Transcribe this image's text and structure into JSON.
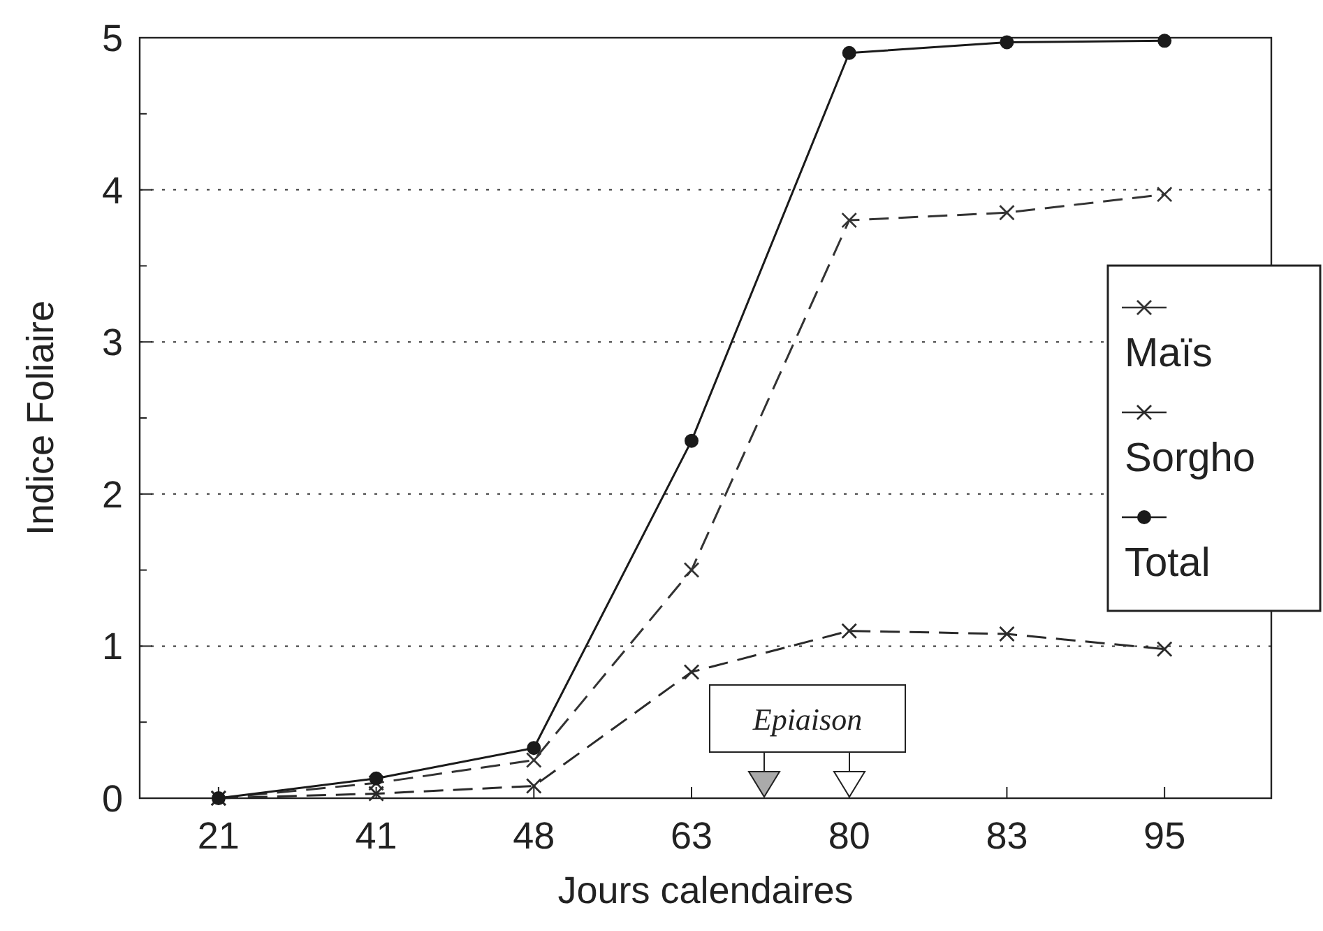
{
  "chart_data": {
    "type": "line",
    "xlabel": "Jours calendaires",
    "ylabel": "Indice Foliaire",
    "categories": [
      "21",
      "41",
      "48",
      "63",
      "80",
      "83",
      "95"
    ],
    "series": [
      {
        "name": "Maïs",
        "color": "#333333",
        "values": [
          0,
          0.1,
          0.25,
          1.5,
          3.8,
          3.85,
          3.97
        ],
        "marker": "cross",
        "line_style": "dashed"
      },
      {
        "name": "Sorgho",
        "color": "#2a2a2a",
        "values": [
          0,
          0.03,
          0.08,
          0.83,
          1.1,
          1.08,
          0.98
        ],
        "marker": "cross",
        "line_style": "dashed"
      },
      {
        "name": "Total",
        "color": "#1a1a1a",
        "values": [
          0,
          0.13,
          0.33,
          2.35,
          4.9,
          4.97,
          4.98
        ],
        "marker": "circle",
        "line_style": "solid"
      }
    ],
    "ylim": [
      0,
      5
    ],
    "yticks": [
      0,
      {
        "value": 0.5,
        "label": null
      },
      1,
      {
        "value": 1.5,
        "label": null
      },
      2,
      {
        "value": 2.5,
        "label": null
      },
      3,
      {
        "value": 3.5,
        "label": null
      },
      4,
      {
        "value": 4.5,
        "label": null
      },
      5
    ],
    "grid": "y",
    "legend": "right",
    "annotations": [
      "Epiaison"
    ]
  }
}
